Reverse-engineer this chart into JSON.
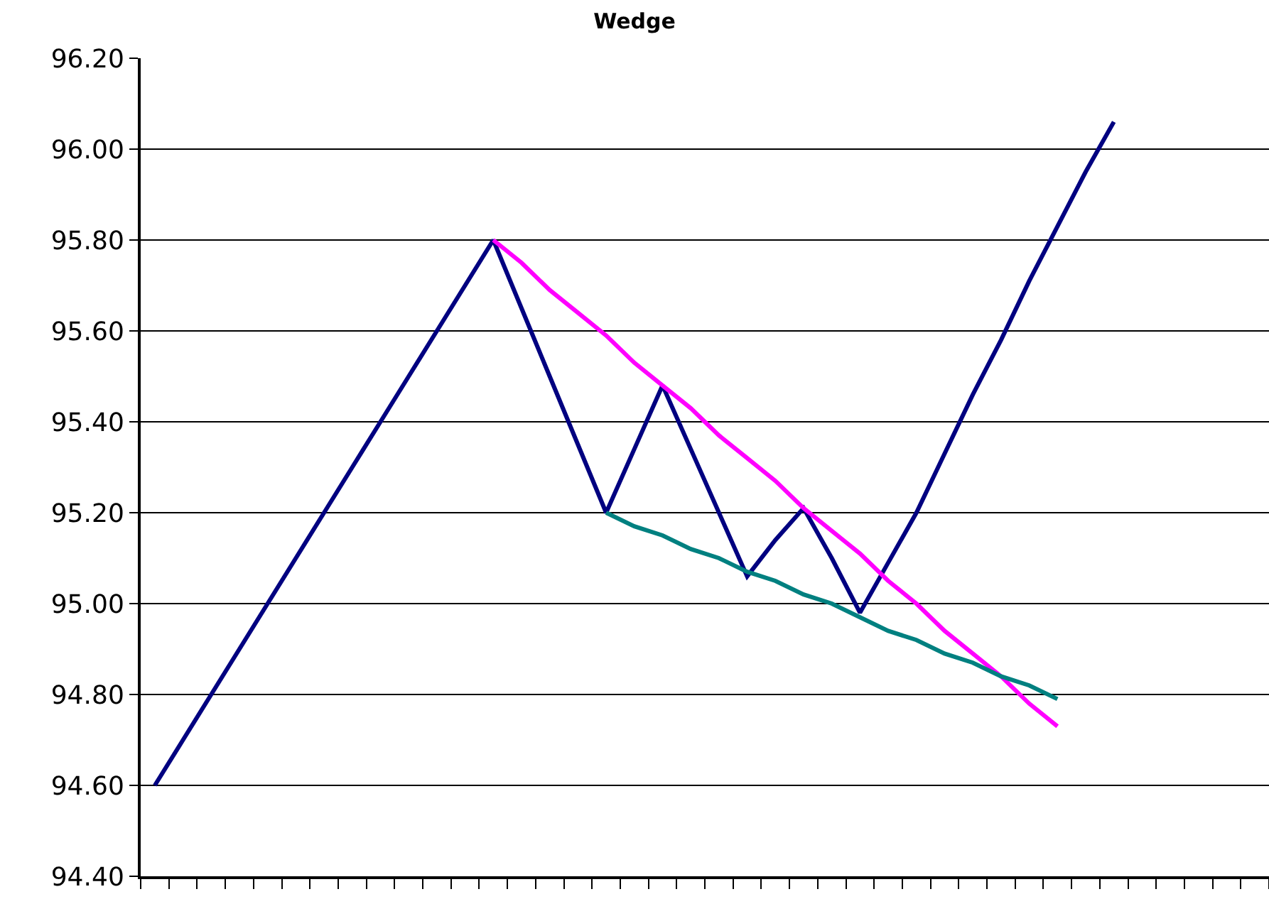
{
  "chart_data": {
    "type": "line",
    "title": "Wedge",
    "categories": [
      null,
      null,
      null,
      null,
      null,
      null,
      null,
      null,
      null,
      null,
      null,
      null,
      null,
      null,
      null,
      null,
      null,
      null,
      null,
      null,
      null,
      null,
      null,
      null,
      null,
      null,
      null,
      null,
      null,
      null,
      null,
      null,
      null,
      null,
      null,
      null,
      null,
      null,
      null,
      null
    ],
    "series": [
      {
        "color": "#000080",
        "values": [
          94.6,
          94.7,
          94.8,
          94.9,
          95.0,
          95.1,
          95.2,
          95.3,
          95.4,
          95.5,
          95.6,
          95.7,
          95.8,
          95.65,
          95.5,
          95.35,
          95.2,
          95.34,
          95.48,
          95.34,
          95.2,
          95.06,
          95.14,
          95.21,
          95.1,
          94.98,
          95.09,
          95.2,
          95.33,
          95.46,
          95.58,
          95.71,
          95.83,
          95.95,
          96.06,
          null,
          null,
          null,
          null,
          null
        ]
      },
      {
        "color": "#ff00ff",
        "values": [
          null,
          null,
          null,
          null,
          null,
          null,
          null,
          null,
          null,
          null,
          null,
          null,
          95.8,
          95.75,
          95.69,
          95.64,
          95.59,
          95.53,
          95.48,
          95.43,
          95.37,
          95.32,
          95.27,
          95.21,
          95.16,
          95.11,
          95.05,
          95.0,
          94.94,
          94.89,
          94.84,
          94.78,
          94.73,
          null,
          null,
          null,
          null,
          null,
          null,
          null
        ]
      },
      {
        "color": "#008080",
        "values": [
          null,
          null,
          null,
          null,
          null,
          null,
          null,
          null,
          null,
          null,
          null,
          null,
          null,
          null,
          null,
          null,
          95.2,
          95.17,
          95.15,
          95.12,
          95.1,
          95.07,
          95.05,
          95.02,
          95.0,
          94.97,
          94.94,
          94.92,
          94.89,
          94.87,
          94.84,
          94.82,
          94.79,
          null,
          null,
          null,
          null,
          null,
          null,
          null
        ]
      }
    ],
    "ylim": [
      94.4,
      96.2
    ],
    "yticks": [
      {
        "value": 94.4,
        "label": "94.40"
      },
      {
        "value": 94.6,
        "label": "94.60"
      },
      {
        "value": 94.8,
        "label": "94.80"
      },
      {
        "value": 95.0,
        "label": "95.00"
      },
      {
        "value": 95.2,
        "label": "95.20"
      },
      {
        "value": 95.4,
        "label": "95.40"
      },
      {
        "value": 95.6,
        "label": "95.60"
      },
      {
        "value": 95.8,
        "label": "95.80"
      },
      {
        "value": 96.0,
        "label": "96.00"
      },
      {
        "value": 96.2,
        "label": "96.20"
      }
    ],
    "grid": "y",
    "tick_labels": "y",
    "marker": "none",
    "line_style": "solid"
  }
}
